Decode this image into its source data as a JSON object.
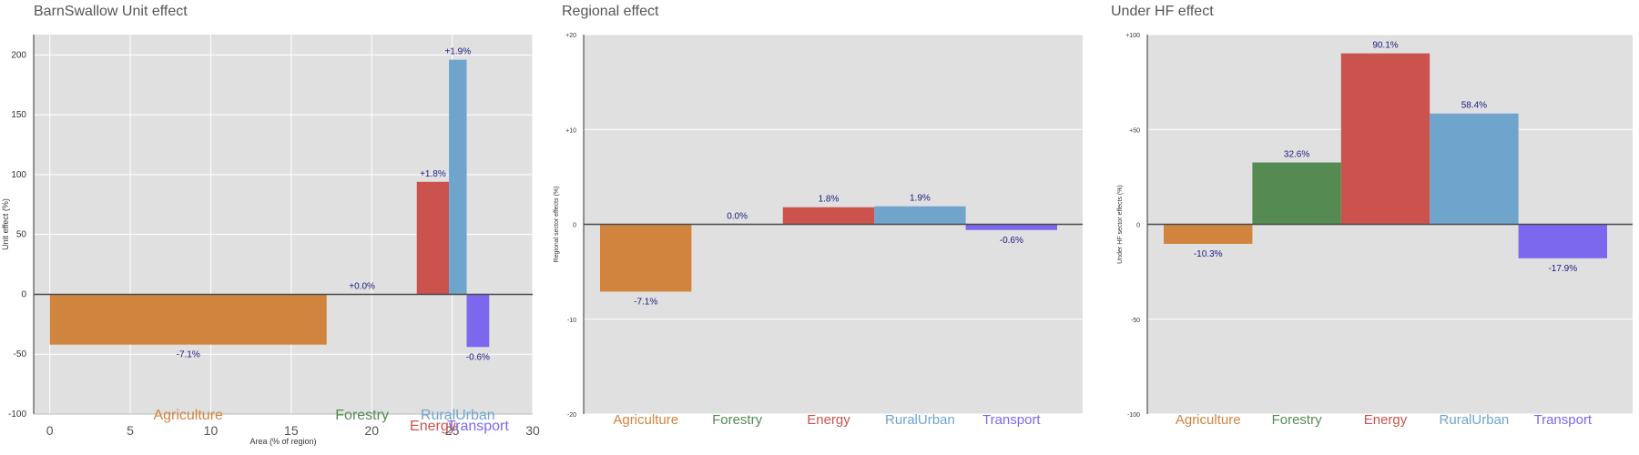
{
  "colors": {
    "Agriculture": "#D0843E",
    "Forestry": "#558B52",
    "Energy": "#CB524D",
    "RuralUrban": "#6FA5CD",
    "Transport": "#7B68EE",
    "label_text": "#1a1a80",
    "panel_bg": "#E0E0E0",
    "zero_line": "#4a4a4a"
  },
  "chart_data": [
    {
      "type": "bar",
      "title": "BarnSwallow Unit effect",
      "xlabel": "Area (% of region)",
      "ylabel": "Unit effect (%)",
      "xlim": [
        -1,
        30
      ],
      "ylim": [
        -100,
        217
      ],
      "xticks": [
        "0",
        "5",
        "10",
        "15",
        "20",
        "25",
        "30"
      ],
      "yticks": [
        "-100",
        "-50",
        "0",
        "50",
        "100",
        "150",
        "200"
      ],
      "categories": [
        "Agriculture",
        "Forestry",
        "Energy",
        "RuralUrban",
        "Transport"
      ],
      "bars": [
        {
          "sector": "Agriculture",
          "x_start": 0,
          "x_end": 17.2,
          "value": -42,
          "label": "-7.1%"
        },
        {
          "sector": "Forestry",
          "x_start": 19.4,
          "x_end": 19.4,
          "value": 0,
          "label": "+0.0%"
        },
        {
          "sector": "Energy",
          "x_start": 22.8,
          "x_end": 24.8,
          "value": 94,
          "label": "+1.8%"
        },
        {
          "sector": "RuralUrban",
          "x_start": 24.8,
          "x_end": 25.9,
          "value": 196,
          "label": "+1.9%"
        },
        {
          "sector": "Transport",
          "x_start": 25.9,
          "x_end": 27.3,
          "value": -44,
          "label": "-0.6%"
        }
      ],
      "sector_labels": [
        {
          "sector": "Agriculture",
          "text": "Agriculture"
        },
        {
          "sector": "Forestry",
          "text": "Forestry"
        },
        {
          "sector": "Energy",
          "text": "Energy"
        },
        {
          "sector": "RuralUrban",
          "text": "RuralUrban"
        },
        {
          "sector": "Transport",
          "text": "Transport"
        }
      ]
    },
    {
      "type": "bar",
      "title": "Regional effect",
      "xlabel": "",
      "ylabel": "Regional sector effects (%)",
      "ylim": [
        -20,
        20
      ],
      "yticks": [
        "-20",
        "-10",
        "0",
        "+10",
        "+20"
      ],
      "categories": [
        "Agriculture",
        "Forestry",
        "Energy",
        "RuralUrban",
        "Transport"
      ],
      "values": [
        -7.1,
        0.0,
        1.8,
        1.9,
        -0.6
      ],
      "labels": [
        "-7.1%",
        "0.0%",
        "1.8%",
        "1.9%",
        "-0.6%"
      ]
    },
    {
      "type": "bar",
      "title": "Under HF effect",
      "xlabel": "",
      "ylabel": "Under HF sector effects (%)",
      "ylim": [
        -100,
        100
      ],
      "yticks": [
        "-100",
        "-50",
        "0",
        "+50",
        "+100"
      ],
      "categories": [
        "Agriculture",
        "Forestry",
        "Energy",
        "RuralUrban",
        "Transport"
      ],
      "values": [
        -10.3,
        32.6,
        90.1,
        58.4,
        -17.9
      ],
      "labels": [
        "-10.3%",
        "32.6%",
        "90.1%",
        "58.4%",
        "-17.9%"
      ]
    }
  ]
}
